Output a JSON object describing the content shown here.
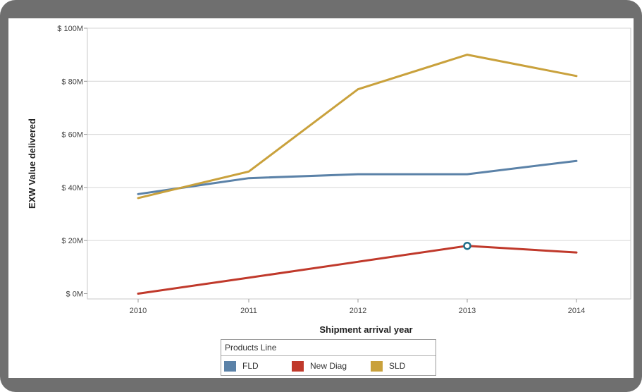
{
  "chart_data": {
    "type": "line",
    "x": [
      "2010",
      "2011",
      "2012",
      "2013",
      "2014"
    ],
    "xlabel": "Shipment arrival year",
    "ylabel": "EXW Value delivered",
    "ylim": [
      -2,
      100
    ],
    "yticks": [
      0,
      20,
      40,
      60,
      80,
      100
    ],
    "ytick_labels": [
      "$ 0M",
      "$ 20M",
      "$ 40M",
      "$ 60M",
      "$ 80M",
      "$ 100M"
    ],
    "grid": "horizontal",
    "legend_title": "Products Line",
    "legend_position": "bottom",
    "series": [
      {
        "name": "FLD",
        "color": "#5b82a8",
        "values": [
          37.5,
          43.5,
          45,
          45,
          50
        ]
      },
      {
        "name": "New Diag",
        "color": "#c0392b",
        "values": [
          0,
          6,
          12,
          18,
          15.5
        ]
      },
      {
        "name": "SLD",
        "color": "#c9a13c",
        "values": [
          36,
          46,
          77,
          90,
          82
        ]
      }
    ],
    "highlight": {
      "series": "New Diag",
      "x": "2013",
      "value": 18,
      "color": "#1f6f8b"
    }
  }
}
